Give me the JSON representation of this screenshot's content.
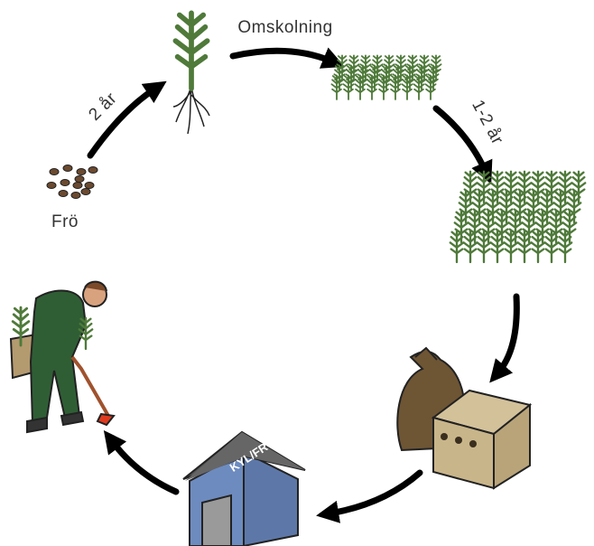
{
  "labels": {
    "omskolning": "Omskolning",
    "two_years": "2 år",
    "one_two_years": "1-2 år",
    "seed": "Frö",
    "storage": "KYL/FRYS"
  }
}
